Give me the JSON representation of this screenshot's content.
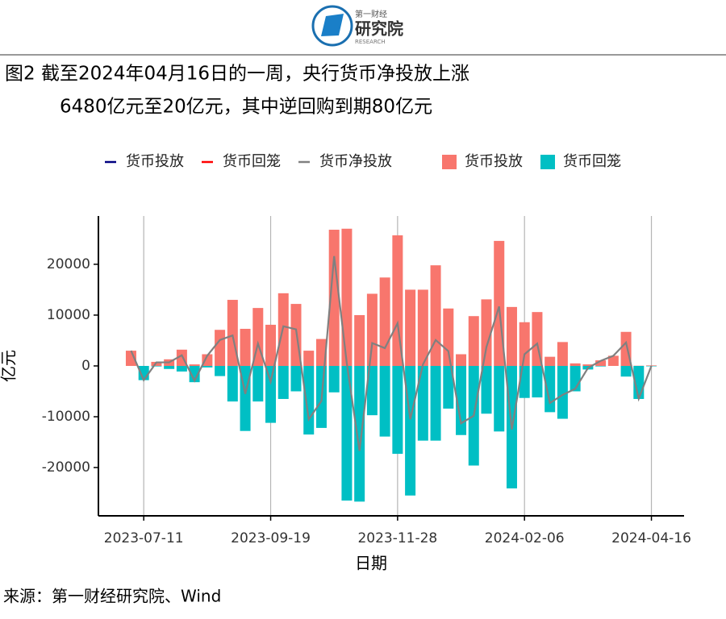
{
  "header": {
    "logo_small": "第一财经",
    "logo_main": "研究院",
    "logo_sub": "RESEARCH"
  },
  "chart_data": {
    "type": "bar-line",
    "title_lines": [
      "图2 截至2024年04月16日的一周，央行货币净投放上涨",
      "6480亿元至20亿元，其中逆回购到期80亿元"
    ],
    "xlabel": "日期",
    "ylabel": "亿元",
    "source": "来源：第一财经研究院、Wind",
    "x": [
      "2023-07-04",
      "2023-07-11",
      "2023-07-18",
      "2023-07-25",
      "2023-08-01",
      "2023-08-08",
      "2023-08-15",
      "2023-08-22",
      "2023-08-29",
      "2023-09-05",
      "2023-09-12",
      "2023-09-19",
      "2023-09-26",
      "2023-10-03",
      "2023-10-10",
      "2023-10-17",
      "2023-10-24",
      "2023-10-31",
      "2023-11-07",
      "2023-11-14",
      "2023-11-21",
      "2023-11-28",
      "2023-12-05",
      "2023-12-12",
      "2023-12-19",
      "2023-12-26",
      "2024-01-02",
      "2024-01-09",
      "2024-01-16",
      "2024-01-23",
      "2024-01-30",
      "2024-02-06",
      "2024-02-13",
      "2024-02-20",
      "2024-02-27",
      "2024-03-05",
      "2024-03-12",
      "2024-03-19",
      "2024-03-26",
      "2024-04-02",
      "2024-04-09",
      "2024-04-16"
    ],
    "series": [
      {
        "name": "货币投放",
        "color": "#F8766D",
        "kind": "bar",
        "values": [
          3000,
          0,
          800,
          1300,
          3200,
          300,
          2300,
          7100,
          13000,
          7300,
          11400,
          8100,
          14300,
          12200,
          3000,
          5300,
          26800,
          27000,
          10000,
          14200,
          17400,
          25700,
          15000,
          15000,
          19800,
          11300,
          2300,
          9800,
          13100,
          24600,
          11600,
          8600,
          10600,
          1800,
          4700,
          500,
          300,
          1100,
          2000,
          6700,
          40,
          100
        ]
      },
      {
        "name": "货币回笼",
        "color": "#00BFC4",
        "kind": "bar",
        "values": [
          0,
          -2800,
          -100,
          -600,
          -1100,
          -3200,
          -300,
          -2000,
          -7000,
          -12800,
          -7000,
          -11200,
          -6500,
          -5000,
          -13500,
          -12200,
          -5200,
          -26500,
          -26700,
          -9700,
          -13900,
          -17300,
          -25500,
          -14700,
          -14700,
          -8400,
          -13600,
          -19600,
          -9400,
          -12900,
          -24100,
          -6300,
          -6200,
          -9100,
          -10400,
          -5000,
          -700,
          -100,
          0,
          -2100,
          -6500,
          -80
        ]
      },
      {
        "name": "货币净投放",
        "color": "#808080",
        "kind": "line",
        "values": [
          3000,
          -2800,
          700,
          700,
          2100,
          -2900,
          2000,
          5100,
          6000,
          -5500,
          4400,
          -3100,
          7800,
          7200,
          -10500,
          -6900,
          21600,
          500,
          -16700,
          4500,
          3500,
          8400,
          -10500,
          300,
          5100,
          2900,
          -11300,
          -9800,
          3700,
          11700,
          -12500,
          2300,
          4400,
          -7300,
          -5700,
          -4500,
          -400,
          1000,
          2000,
          4600,
          -6460,
          20
        ]
      }
    ],
    "line_legend": [
      {
        "name": "货币投放",
        "color": "#000080"
      },
      {
        "name": "货币回笼",
        "color": "#FF0000"
      }
    ],
    "xlim": [
      "2023-06-16",
      "2024-05-04"
    ],
    "xticks": [
      "2023-07-11",
      "2023-09-19",
      "2023-11-28",
      "2024-02-06",
      "2024-04-16"
    ],
    "ylim": [
      -29500,
      29500
    ],
    "yticks": [
      -20000,
      -10000,
      0,
      10000,
      20000
    ],
    "grid": "x"
  }
}
